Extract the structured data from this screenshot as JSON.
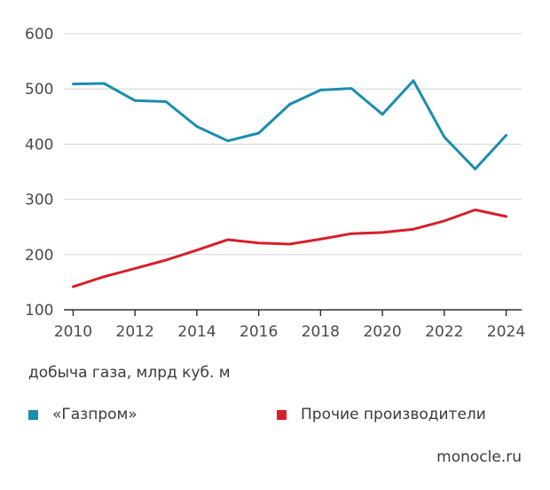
{
  "chart_data": {
    "type": "line",
    "title": "",
    "xlabel": "",
    "ylabel": "добыча газа, млрд куб. м",
    "x": [
      2010,
      2011,
      2012,
      2013,
      2014,
      2015,
      2016,
      2017,
      2018,
      2019,
      2020,
      2021,
      2022,
      2023,
      2024
    ],
    "x_ticks": [
      "2010",
      "2012",
      "2014",
      "2016",
      "2018",
      "2020",
      "2022",
      "2024"
    ],
    "y_ticks": [
      "100",
      "200",
      "300",
      "400",
      "500",
      "600"
    ],
    "xlim": [
      2009.7,
      2024.5
    ],
    "ylim": [
      100,
      600
    ],
    "grid": true,
    "series": [
      {
        "name": "«Газпром»",
        "color": "#1a8db0",
        "values": [
          509,
          510,
          479,
          477,
          432,
          406,
          420,
          472,
          498,
          501,
          454,
          515,
          413,
          355,
          416
        ]
      },
      {
        "name": "Прочие производители",
        "color": "#d6202a",
        "values": [
          142,
          160,
          175,
          190,
          208,
          227,
          221,
          219,
          228,
          238,
          240,
          246,
          261,
          281,
          269
        ]
      }
    ]
  },
  "source": "monocle.ru"
}
